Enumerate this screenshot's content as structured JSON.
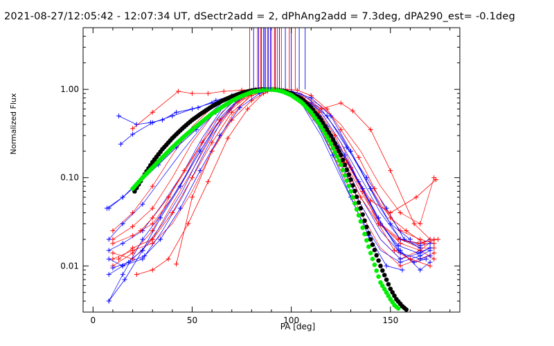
{
  "chart_data": {
    "type": "line",
    "title": "2021-08-27/12:05:42 - 12:07:34 UT, dSectr2add = 2, dPhAng2add = 7.3deg, dPA290_est= -0.1deg",
    "xlabel": "PA [deg]",
    "ylabel": "Normalized Flux",
    "xlim": [
      -5,
      185
    ],
    "ylim": [
      0.003,
      5.0
    ],
    "yscale": "log",
    "xticks": [
      "0",
      "50",
      "100",
      "150"
    ],
    "yticks": [
      "0.01",
      "0.10",
      "1.00"
    ],
    "grid": false,
    "peak_marker_lines": {
      "red_x": [
        79,
        83,
        84.5,
        86,
        87,
        88,
        90,
        91.5,
        93,
        95,
        99,
        102
      ],
      "blue_x": [
        81,
        83.5,
        85,
        86.5,
        88.5,
        89.5,
        92,
        94,
        97,
        100,
        104,
        107
      ],
      "y_from": 1.0,
      "y_to": 5.0
    },
    "model_curves": [
      {
        "color": "black",
        "x": [
          21,
          25,
          30,
          35,
          40,
          45,
          50,
          55,
          60,
          65,
          70,
          75,
          80,
          85,
          88,
          90,
          92,
          95,
          100,
          105,
          110,
          115,
          120,
          125,
          130,
          135,
          140,
          145,
          150,
          153,
          156,
          158
        ],
        "y": [
          0.07,
          0.1,
          0.15,
          0.21,
          0.28,
          0.36,
          0.45,
          0.54,
          0.64,
          0.74,
          0.83,
          0.91,
          0.97,
          1.0,
          1.0,
          1.0,
          0.99,
          0.97,
          0.9,
          0.78,
          0.62,
          0.45,
          0.3,
          0.18,
          0.095,
          0.045,
          0.02,
          0.01,
          0.0055,
          0.0042,
          0.0035,
          0.0032
        ]
      },
      {
        "color": "green",
        "x": [
          20,
          25,
          30,
          35,
          40,
          45,
          50,
          55,
          60,
          65,
          70,
          75,
          80,
          85,
          88,
          90,
          93,
          96,
          100,
          105,
          110,
          115,
          120,
          125,
          130,
          135,
          140,
          145,
          150,
          152,
          154
        ],
        "y": [
          0.075,
          0.1,
          0.13,
          0.17,
          0.22,
          0.28,
          0.35,
          0.43,
          0.53,
          0.63,
          0.74,
          0.84,
          0.93,
          0.98,
          1.0,
          1.0,
          0.98,
          0.94,
          0.86,
          0.72,
          0.55,
          0.38,
          0.24,
          0.14,
          0.07,
          0.032,
          0.014,
          0.0065,
          0.0042,
          0.0036,
          0.0033
        ]
      }
    ],
    "spread_curves": {
      "red": {
        "left_x": [
          10,
          20,
          30,
          40,
          50,
          60,
          70,
          80,
          85
        ],
        "right_x": [
          95,
          105,
          115,
          125,
          135,
          145,
          155,
          165,
          172
        ],
        "left_y": [
          [
            0.012,
            0.015,
            0.018,
            0.03,
            0.07,
            0.2,
            0.5,
            0.9,
            1.0
          ],
          [
            0.018,
            0.022,
            0.03,
            0.06,
            0.14,
            0.33,
            0.65,
            0.92,
            1.0
          ],
          [
            0.02,
            0.028,
            0.045,
            0.1,
            0.25,
            0.5,
            0.8,
            0.97,
            1.0
          ],
          [
            0.014,
            0.012,
            0.02,
            0.05,
            0.12,
            0.3,
            0.6,
            0.9,
            1.0
          ],
          [
            0.025,
            0.04,
            0.08,
            0.18,
            0.38,
            0.62,
            0.85,
            0.98,
            1.0
          ],
          [
            0.01,
            0.014,
            0.025,
            0.07,
            0.16,
            0.4,
            0.72,
            0.94,
            1.0
          ]
        ],
        "right_y": [
          [
            1.0,
            0.8,
            0.45,
            0.15,
            0.05,
            0.02,
            0.012,
            0.015,
            0.012
          ],
          [
            1.0,
            0.7,
            0.35,
            0.12,
            0.04,
            0.016,
            0.01,
            0.012,
            0.014
          ],
          [
            1.0,
            0.85,
            0.55,
            0.25,
            0.08,
            0.03,
            0.018,
            0.015,
            0.02
          ],
          [
            1.0,
            0.9,
            0.6,
            0.3,
            0.12,
            0.05,
            0.025,
            0.02,
            0.018
          ],
          [
            1.0,
            0.75,
            0.4,
            0.18,
            0.07,
            0.03,
            0.02,
            0.016,
            0.016
          ],
          [
            1.0,
            0.88,
            0.65,
            0.4,
            0.2,
            0.08,
            0.04,
            0.03,
            0.1
          ]
        ]
      },
      "blue": {
        "left_x": [
          8,
          15,
          25,
          35,
          45,
          55,
          65,
          75,
          85
        ],
        "right_x": [
          95,
          105,
          115,
          125,
          135,
          145,
          155,
          165,
          170
        ],
        "left_y": [
          [
            0.008,
            0.01,
            0.015,
            0.03,
            0.07,
            0.2,
            0.5,
            0.85,
            1.0
          ],
          [
            0.015,
            0.018,
            0.025,
            0.05,
            0.11,
            0.28,
            0.6,
            0.9,
            1.0
          ],
          [
            0.045,
            0.06,
            0.1,
            0.17,
            0.28,
            0.45,
            0.7,
            0.93,
            1.0
          ],
          [
            0.004,
            0.008,
            0.02,
            0.04,
            0.09,
            0.24,
            0.55,
            0.88,
            1.0
          ],
          [
            0.012,
            0.01,
            0.012,
            0.025,
            0.06,
            0.17,
            0.45,
            0.82,
            1.0
          ],
          [
            0.02,
            0.03,
            0.05,
            0.1,
            0.2,
            0.38,
            0.65,
            0.92,
            1.0
          ]
        ],
        "right_y": [
          [
            1.0,
            0.8,
            0.45,
            0.18,
            0.06,
            0.025,
            0.014,
            0.012,
            0.013
          ],
          [
            1.0,
            0.75,
            0.38,
            0.14,
            0.05,
            0.02,
            0.012,
            0.014,
            0.016
          ],
          [
            1.0,
            0.85,
            0.55,
            0.25,
            0.1,
            0.04,
            0.02,
            0.018,
            0.02
          ],
          [
            1.0,
            0.7,
            0.3,
            0.1,
            0.035,
            0.015,
            0.011,
            0.013,
            0.015
          ],
          [
            1.0,
            0.9,
            0.6,
            0.3,
            0.12,
            0.045,
            0.02,
            0.017,
            0.018
          ],
          [
            1.0,
            0.8,
            0.5,
            0.2,
            0.08,
            0.03,
            0.015,
            0.009,
            0.011
          ]
        ]
      }
    },
    "series": [
      {
        "name": "",
        "color": "#0000ff",
        "x": [
          13,
          22,
          29,
          35,
          42,
          53,
          62,
          70,
          78,
          85,
          90,
          95,
          102,
          110,
          118,
          128,
          138,
          148,
          157,
          165
        ],
        "y": [
          0.5,
          0.4,
          0.42,
          0.45,
          0.55,
          0.62,
          0.75,
          0.85,
          0.93,
          0.98,
          1.0,
          0.96,
          0.85,
          0.7,
          0.5,
          0.22,
          0.1,
          0.045,
          0.02,
          0.016
        ]
      },
      {
        "name": "",
        "color": "#ff0000",
        "x": [
          20,
          30,
          43,
          50,
          58,
          66,
          75,
          82,
          88,
          92,
          97,
          103,
          110,
          118,
          125,
          134,
          142,
          150,
          158,
          167
        ],
        "y": [
          0.36,
          0.55,
          0.95,
          0.9,
          0.9,
          0.95,
          0.98,
          1.0,
          1.0,
          1.0,
          1.0,
          0.98,
          0.85,
          0.6,
          0.35,
          0.17,
          0.075,
          0.035,
          0.025,
          0.018
        ]
      },
      {
        "name": "",
        "color": "#0000ff",
        "x": [
          14,
          20,
          30,
          40,
          50,
          60,
          70,
          80,
          88,
          93,
          100,
          110,
          120,
          130,
          140,
          150,
          160
        ],
        "y": [
          0.24,
          0.31,
          0.42,
          0.5,
          0.6,
          0.7,
          0.82,
          0.92,
          0.98,
          1.0,
          0.95,
          0.8,
          0.5,
          0.2,
          0.075,
          0.03,
          0.02
        ]
      },
      {
        "name": "",
        "color": "#ff0000",
        "x": [
          42,
          50,
          60,
          70,
          80,
          88,
          92,
          98,
          105,
          115,
          125,
          131,
          140,
          150,
          162,
          170
        ],
        "y": [
          0.0105,
          0.06,
          0.2,
          0.45,
          0.75,
          0.95,
          1.0,
          0.95,
          0.82,
          0.6,
          0.7,
          0.57,
          0.35,
          0.12,
          0.03,
          0.02
        ]
      },
      {
        "name": "",
        "color": "#ff0000",
        "x": [
          13,
          20,
          30,
          40,
          50,
          60,
          70,
          80,
          87,
          92,
          98,
          106,
          114,
          122,
          130,
          140,
          150,
          163,
          173
        ],
        "y": [
          0.012,
          0.016,
          0.02,
          0.04,
          0.1,
          0.25,
          0.55,
          0.85,
          0.98,
          1.0,
          0.96,
          0.8,
          0.55,
          0.3,
          0.13,
          0.055,
          0.04,
          0.06,
          0.095
        ]
      },
      {
        "name": "",
        "color": "#0000ff",
        "x": [
          10,
          18,
          26,
          34,
          44,
          54,
          64,
          74,
          84,
          90,
          96,
          104,
          114,
          124,
          134,
          144,
          154,
          162,
          168
        ],
        "y": [
          0.0095,
          0.011,
          0.013,
          0.02,
          0.045,
          0.12,
          0.3,
          0.62,
          0.9,
          1.0,
          0.97,
          0.82,
          0.5,
          0.22,
          0.09,
          0.035,
          0.015,
          0.011,
          0.012
        ]
      },
      {
        "name": "",
        "color": "#ff0000",
        "x": [
          22,
          30,
          38,
          48,
          58,
          68,
          78,
          86,
          91,
          97,
          104,
          112,
          120,
          128,
          136,
          144,
          152,
          160,
          170
        ],
        "y": [
          0.008,
          0.009,
          0.012,
          0.03,
          0.09,
          0.28,
          0.6,
          0.9,
          1.0,
          0.96,
          0.8,
          0.55,
          0.3,
          0.15,
          0.07,
          0.03,
          0.015,
          0.012,
          0.01
        ]
      },
      {
        "name": "",
        "color": "#0000ff",
        "x": [
          7,
          15,
          24,
          33,
          42,
          52,
          62,
          72,
          82,
          88,
          94,
          101,
          109,
          118,
          127,
          136,
          145,
          154,
          164,
          170
        ],
        "y": [
          0.045,
          0.06,
          0.09,
          0.14,
          0.22,
          0.35,
          0.55,
          0.78,
          0.94,
          1.0,
          0.98,
          0.88,
          0.66,
          0.38,
          0.18,
          0.075,
          0.03,
          0.017,
          0.014,
          0.016
        ]
      },
      {
        "name": "",
        "color": "#0000ff",
        "x": [
          8,
          16,
          25,
          34,
          44,
          54,
          64,
          74,
          84,
          90,
          96,
          103,
          112,
          121,
          130,
          139,
          148,
          156
        ],
        "y": [
          0.004,
          0.007,
          0.015,
          0.035,
          0.08,
          0.2,
          0.45,
          0.78,
          0.96,
          1.0,
          0.95,
          0.78,
          0.45,
          0.18,
          0.06,
          0.022,
          0.01,
          0.009
        ]
      },
      {
        "name": "",
        "color": "#ff0000",
        "x": [
          24,
          30,
          38,
          46,
          55,
          64,
          73,
          82,
          89,
          94,
          100,
          108,
          117,
          126,
          135,
          144,
          154,
          164,
          174
        ],
        "y": [
          0.025,
          0.035,
          0.06,
          0.12,
          0.25,
          0.45,
          0.72,
          0.92,
          1.0,
          0.98,
          0.86,
          0.63,
          0.35,
          0.15,
          0.06,
          0.03,
          0.02,
          0.018,
          0.02
        ]
      }
    ]
  }
}
